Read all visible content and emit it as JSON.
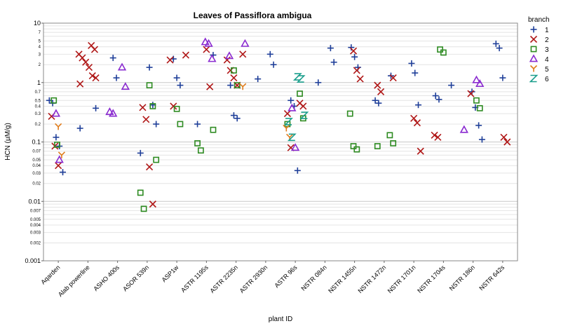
{
  "chart_data": {
    "type": "scatter",
    "title": "Leaves of Passiflora ambigua",
    "xlabel": "plant ID",
    "ylabel": "HCN (µM/g)",
    "yscale": "log",
    "ylim": [
      0.001,
      10
    ],
    "y_ticks_major": [
      "10",
      "1",
      "0.1",
      "0.01",
      "0.001"
    ],
    "y_ticks_major_values": [
      10,
      1,
      0.1,
      0.01,
      0.001
    ],
    "y_ticks_labeled": [
      {
        "v": 7,
        "t": "7"
      },
      {
        "v": 5,
        "t": "5"
      },
      {
        "v": 4,
        "t": "4"
      },
      {
        "v": 3,
        "t": "3"
      },
      {
        "v": 2,
        "t": "2"
      },
      {
        "v": 0.7,
        "t": "0.7"
      },
      {
        "v": 0.5,
        "t": "0.5"
      },
      {
        "v": 0.4,
        "t": "0.4"
      },
      {
        "v": 0.3,
        "t": "0.3"
      },
      {
        "v": 0.2,
        "t": "0.2"
      },
      {
        "v": 0.07,
        "t": "0.07"
      },
      {
        "v": 0.05,
        "t": "0.05"
      },
      {
        "v": 0.04,
        "t": "0.04"
      },
      {
        "v": 0.03,
        "t": "0.03"
      },
      {
        "v": 0.02,
        "t": "0.02"
      },
      {
        "v": 0.007,
        "t": "0.007"
      },
      {
        "v": 0.005,
        "t": "0.005"
      },
      {
        "v": 0.004,
        "t": "0.004"
      },
      {
        "v": 0.003,
        "t": "0.003"
      },
      {
        "v": 0.002,
        "t": "0.002"
      }
    ],
    "grid": true,
    "legend_title": "branch",
    "legend_position": "right",
    "categories": [
      "Aqarden",
      "Alab powerline",
      "ASHO 400s",
      "ASOR 539n",
      "ASP1w",
      "ASTR 1195s",
      "ASTR 2235n",
      "ASTR 2930n",
      "ASTR 96s",
      "NSTR 084n",
      "NSTR 1455n",
      "NSTR 1472n",
      "NSTR 1701n",
      "NSTR 1704s",
      "NSTR 186n",
      "NSTR 642s"
    ],
    "series": [
      {
        "name": "1",
        "marker": "plus",
        "color": "#1f3f99",
        "points": [
          [
            0,
            0.5
          ],
          [
            0,
            0.45
          ],
          [
            0,
            0.12
          ],
          [
            0,
            0.085
          ],
          [
            0,
            0.031
          ],
          [
            1,
            0.37
          ],
          [
            1,
            0.17
          ],
          [
            2,
            2.6
          ],
          [
            2,
            1.2
          ],
          [
            3,
            1.8
          ],
          [
            3,
            0.42
          ],
          [
            3,
            0.2
          ],
          [
            3,
            0.065
          ],
          [
            4,
            2.5
          ],
          [
            4,
            1.2
          ],
          [
            4,
            0.9
          ],
          [
            5,
            2.9
          ],
          [
            5,
            0.2
          ],
          [
            6,
            0.9
          ],
          [
            6,
            0.28
          ],
          [
            6,
            0.25
          ],
          [
            7,
            3.0
          ],
          [
            7,
            2.0
          ],
          [
            7,
            1.15
          ],
          [
            8,
            0.5
          ],
          [
            8,
            0.4
          ],
          [
            8,
            0.033
          ],
          [
            9,
            3.8
          ],
          [
            9,
            2.2
          ],
          [
            9,
            1.0
          ],
          [
            10,
            3.9
          ],
          [
            10,
            2.7
          ],
          [
            10,
            1.8
          ],
          [
            11,
            1.3
          ],
          [
            11,
            0.5
          ],
          [
            11,
            0.45
          ],
          [
            12,
            2.1
          ],
          [
            12,
            1.45
          ],
          [
            12,
            0.42
          ],
          [
            13,
            0.9
          ],
          [
            13,
            0.6
          ],
          [
            13,
            0.52
          ],
          [
            14,
            0.7
          ],
          [
            14,
            0.38
          ],
          [
            14,
            0.19
          ],
          [
            14,
            0.11
          ],
          [
            15,
            4.5
          ],
          [
            15,
            3.8
          ],
          [
            15,
            1.2
          ]
        ]
      },
      {
        "name": "2",
        "marker": "x",
        "color": "#b01818",
        "points": [
          [
            0,
            0.27
          ],
          [
            0,
            0.085
          ],
          [
            0,
            0.04
          ],
          [
            1,
            4.2
          ],
          [
            1,
            3.6
          ],
          [
            1,
            3.0
          ],
          [
            1,
            2.6
          ],
          [
            1,
            2.2
          ],
          [
            1,
            1.8
          ],
          [
            1,
            1.3
          ],
          [
            1,
            1.2
          ],
          [
            1,
            0.95
          ],
          [
            3,
            0.38
          ],
          [
            3,
            0.24
          ],
          [
            3,
            0.038
          ],
          [
            3,
            0.009
          ],
          [
            4,
            2.9
          ],
          [
            4,
            2.4
          ],
          [
            4,
            0.4
          ],
          [
            5,
            3.6
          ],
          [
            5,
            0.85
          ],
          [
            6,
            3.0
          ],
          [
            6,
            2.4
          ],
          [
            6,
            1.6
          ],
          [
            6,
            1.2
          ],
          [
            6,
            0.9
          ],
          [
            8,
            0.45
          ],
          [
            8,
            0.4
          ],
          [
            8,
            0.3
          ],
          [
            8,
            0.08
          ],
          [
            10,
            3.4
          ],
          [
            10,
            1.6
          ],
          [
            10,
            1.15
          ],
          [
            11,
            1.2
          ],
          [
            11,
            0.9
          ],
          [
            11,
            0.7
          ],
          [
            12,
            0.25
          ],
          [
            12,
            0.21
          ],
          [
            12,
            0.07
          ],
          [
            13,
            0.13
          ],
          [
            13,
            0.12
          ],
          [
            14,
            0.65
          ],
          [
            15,
            0.12
          ],
          [
            15,
            0.1
          ]
        ]
      },
      {
        "name": "3",
        "marker": "square",
        "color": "#2e8b22",
        "points": [
          [
            0,
            0.5
          ],
          [
            0,
            0.09
          ],
          [
            3,
            0.9
          ],
          [
            3,
            0.4
          ],
          [
            3,
            0.05
          ],
          [
            3,
            0.014
          ],
          [
            3,
            0.0075
          ],
          [
            4,
            0.36
          ],
          [
            4,
            0.2
          ],
          [
            5,
            0.16
          ],
          [
            5,
            0.095
          ],
          [
            5,
            0.072
          ],
          [
            6,
            1.6
          ],
          [
            6,
            0.9
          ],
          [
            8,
            0.65
          ],
          [
            8,
            0.25
          ],
          [
            8,
            0.2
          ],
          [
            10,
            0.3
          ],
          [
            10,
            0.085
          ],
          [
            10,
            0.075
          ],
          [
            11,
            0.13
          ],
          [
            11,
            0.095
          ],
          [
            11,
            0.085
          ],
          [
            13,
            3.6
          ],
          [
            13,
            3.2
          ],
          [
            14,
            0.5
          ],
          [
            14,
            0.37
          ]
        ]
      },
      {
        "name": "4",
        "marker": "triangle",
        "color": "#8a2bd0",
        "points": [
          [
            0,
            0.3
          ],
          [
            0,
            0.05
          ],
          [
            2,
            1.8
          ],
          [
            2,
            0.85
          ],
          [
            2,
            0.32
          ],
          [
            2,
            0.3
          ],
          [
            5,
            4.8
          ],
          [
            5,
            4.5
          ],
          [
            5,
            2.5
          ],
          [
            6,
            4.5
          ],
          [
            6,
            2.8
          ],
          [
            8,
            0.37
          ],
          [
            8,
            0.08
          ],
          [
            14,
            1.1
          ],
          [
            14,
            0.95
          ],
          [
            14,
            0.16
          ]
        ]
      },
      {
        "name": "5",
        "marker": "y",
        "color": "#e07b1a",
        "points": [
          [
            0,
            0.18
          ],
          [
            0,
            0.06
          ],
          [
            6,
            0.85
          ],
          [
            8,
            0.17
          ],
          [
            8,
            0.12
          ]
        ]
      },
      {
        "name": "6",
        "marker": "z",
        "color": "#1a9e8c",
        "points": [
          [
            8,
            1.25
          ],
          [
            8,
            1.15
          ],
          [
            8,
            0.28
          ],
          [
            8,
            0.22
          ],
          [
            8,
            0.12
          ]
        ]
      }
    ]
  }
}
